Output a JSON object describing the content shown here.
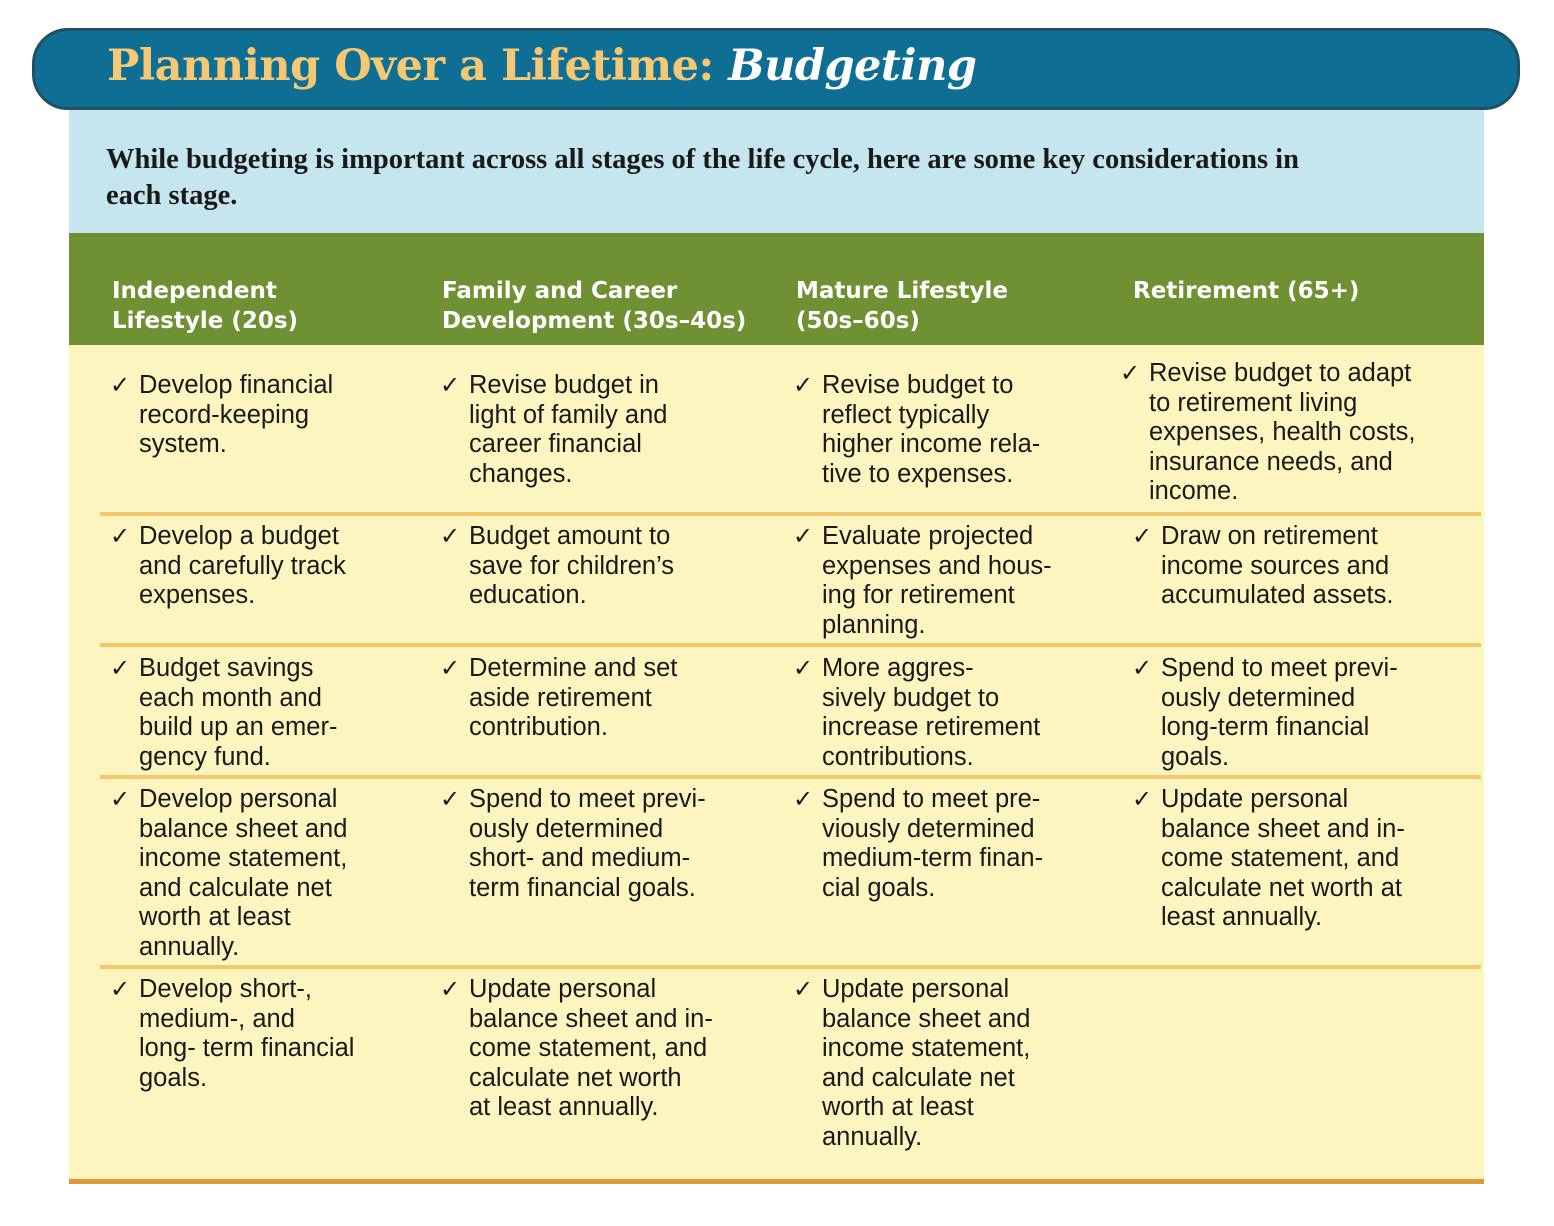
{
  "title": {
    "main": "Planning Over a Lifetime: ",
    "emphasis": "Budgeting"
  },
  "intro": "While budgeting is important across all stages of the life cycle, here are some key considerations in\neach stage.",
  "columns": [
    "Independent\nLifestyle (20s)",
    "Family and Career\nDevelopment (30s–40s)",
    "Mature Lifestyle\n(50s–60s)",
    "Retirement (65+)"
  ],
  "check_symbol": "✓",
  "rows": [
    [
      "Develop financial\nrecord-keeping\nsystem.",
      "Revise budget in\nlight of family and\ncareer financial\nchanges.",
      "Revise budget to\nreflect typically\nhigher income rela-\ntive to expenses.",
      "Revise budget to adapt\nto retirement living\nexpenses, health costs,\ninsurance needs, and\nincome."
    ],
    [
      "Develop a budget\nand carefully track\nexpenses.",
      "Budget amount to\nsave for children’s\neducation.",
      "Evaluate projected\nexpenses and hous-\ning for retirement\nplanning.",
      "Draw on retirement\nincome sources and\naccumulated assets."
    ],
    [
      "Budget savings\neach month and\nbuild up an emer-\ngency fund.",
      "Determine and set\naside retirement\ncontribution.",
      "More aggres-\nsively budget to\nincrease retirement\ncontributions.",
      "Spend to meet previ-\nously determined\nlong-term financial\ngoals."
    ],
    [
      "Develop personal\nbalance sheet and\nincome statement,\nand calculate net\nworth at least\nannually.",
      "Spend to meet previ-\nously determined\nshort- and medium-\nterm financial goals.",
      "Spend to meet pre-\nviously determined\nmedium-term finan-\ncial goals.",
      "Update personal\nbalance sheet and in-\ncome statement, and\ncalculate net worth at\nleast annually."
    ],
    [
      "Develop short-,\nmedium-, and\nlong- term financial\ngoals.",
      "Update personal\nbalance sheet and in-\ncome statement, and\ncalculate net worth\nat least annually.",
      "Update personal\nbalance sheet and\nincome statement,\nand calculate net\nworth at least\nannually.",
      ""
    ]
  ]
}
